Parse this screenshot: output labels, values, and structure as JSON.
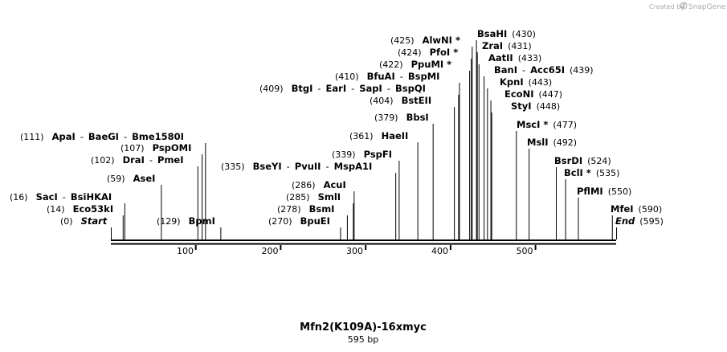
{
  "credit": {
    "prefix": "Created by",
    "brand": "SnapGene"
  },
  "map": {
    "length": 595,
    "title": "Mfn2(K109A)-16xmyc",
    "subtitle": "595 bp",
    "ticks": [
      "100",
      "200",
      "300",
      "400",
      "500"
    ],
    "sites": [
      {
        "names": [
          "Start"
        ],
        "pos": "(0)",
        "bp": 0,
        "italic": true
      },
      {
        "names": [
          "Eco53kI"
        ],
        "pos": "(14)",
        "bp": 14
      },
      {
        "names": [
          "SacI",
          "BsiHKAI"
        ],
        "pos": "(16)",
        "bp": 16
      },
      {
        "names": [
          "AseI"
        ],
        "pos": "(59)",
        "bp": 59
      },
      {
        "names": [
          "DraI",
          "PmeI"
        ],
        "pos": "(102)",
        "bp": 102
      },
      {
        "names": [
          "PspOMI"
        ],
        "pos": "(107)",
        "bp": 107
      },
      {
        "names": [
          "ApaI",
          "BaeGI",
          "Bme1580I"
        ],
        "pos": "(111)",
        "bp": 111
      },
      {
        "names": [
          "BpmI"
        ],
        "pos": "(129)",
        "bp": 129
      },
      {
        "names": [
          "BpuEI"
        ],
        "pos": "(270)",
        "bp": 270
      },
      {
        "names": [
          "BsmI"
        ],
        "pos": "(278)",
        "bp": 278
      },
      {
        "names": [
          "SmlI"
        ],
        "pos": "(285)",
        "bp": 285
      },
      {
        "names": [
          "AcuI"
        ],
        "pos": "(286)",
        "bp": 286
      },
      {
        "names": [
          "BseYI",
          "PvuII",
          "MspA1I"
        ],
        "pos": "(335)",
        "bp": 335
      },
      {
        "names": [
          "PspFI"
        ],
        "pos": "(339)",
        "bp": 339
      },
      {
        "names": [
          "HaeII"
        ],
        "pos": "(361)",
        "bp": 361
      },
      {
        "names": [
          "BbsI"
        ],
        "pos": "(379)",
        "bp": 379
      },
      {
        "names": [
          "BstEII"
        ],
        "pos": "(404)",
        "bp": 404
      },
      {
        "names": [
          "BtgI",
          "EarI",
          "SapI",
          "BspQI"
        ],
        "pos": "(409)",
        "bp": 409
      },
      {
        "names": [
          "BfuAI",
          "BspMI"
        ],
        "pos": "(410)",
        "bp": 410
      },
      {
        "names": [
          "PpuMI *"
        ],
        "pos": "(422)",
        "bp": 422
      },
      {
        "names": [
          "PfoI *"
        ],
        "pos": "(424)",
        "bp": 424
      },
      {
        "names": [
          "AlwNI *"
        ],
        "pos": "(425)",
        "bp": 425
      },
      {
        "names": [
          "BsaHI"
        ],
        "pos": "(430)",
        "bp": 430
      },
      {
        "names": [
          "ZraI"
        ],
        "pos": "(431)",
        "bp": 431
      },
      {
        "names": [
          "AatII"
        ],
        "pos": "(433)",
        "bp": 433
      },
      {
        "names": [
          "BanI",
          "Acc65I"
        ],
        "pos": "(439)",
        "bp": 439
      },
      {
        "names": [
          "KpnI"
        ],
        "pos": "(443)",
        "bp": 443
      },
      {
        "names": [
          "EcoNI"
        ],
        "pos": "(447)",
        "bp": 447
      },
      {
        "names": [
          "StyI"
        ],
        "pos": "(448)",
        "bp": 448
      },
      {
        "names": [
          "MscI *"
        ],
        "pos": "(477)",
        "bp": 477
      },
      {
        "names": [
          "MslI"
        ],
        "pos": "(492)",
        "bp": 492
      },
      {
        "names": [
          "BsrDI"
        ],
        "pos": "(524)",
        "bp": 524
      },
      {
        "names": [
          "BclI *"
        ],
        "pos": "(535)",
        "bp": 535
      },
      {
        "names": [
          "PflMI"
        ],
        "pos": "(550)",
        "bp": 550
      },
      {
        "names": [
          "MfeI"
        ],
        "pos": "(590)",
        "bp": 590
      },
      {
        "names": [
          "End"
        ],
        "pos": "(595)",
        "bp": 595,
        "italic": true
      }
    ]
  }
}
